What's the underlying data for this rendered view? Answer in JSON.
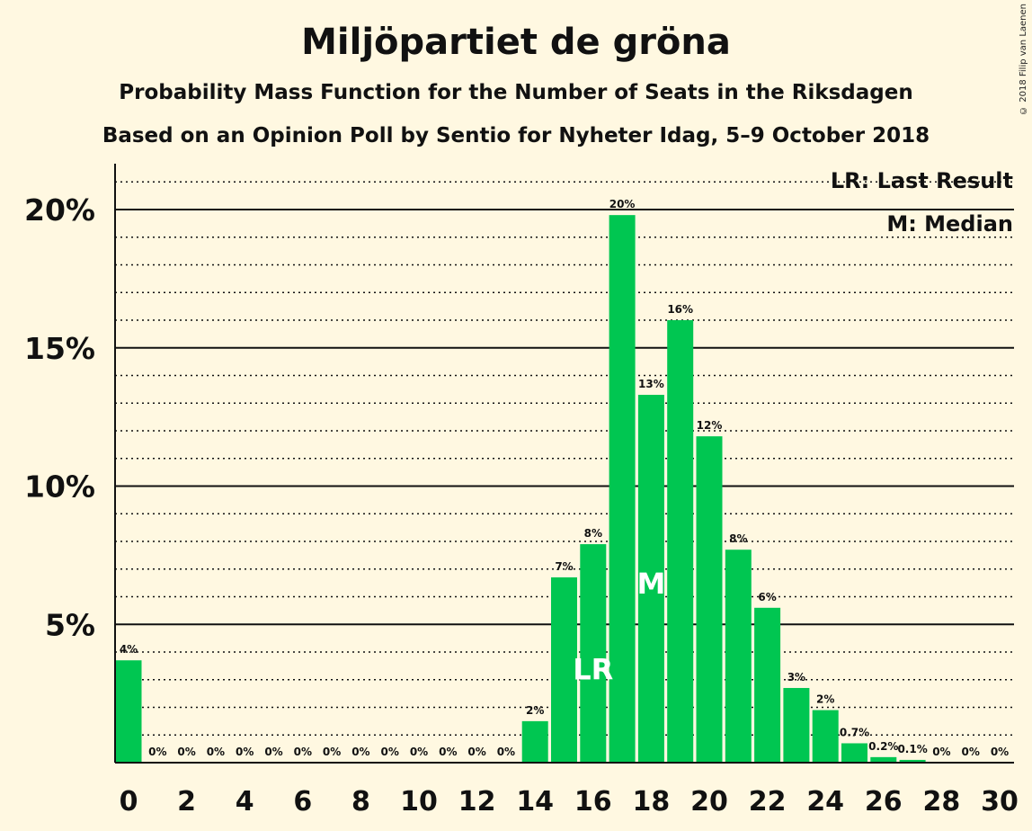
{
  "chart_data": {
    "type": "bar",
    "title": "Miljöpartiet de gröna",
    "subtitle": "Probability Mass Function for the Number of Seats in the Riksdagen",
    "subtitle2": "Based on an Opinion Poll by Sentio for Nyheter Idag, 5–9 October 2018",
    "copyright": "© 2018 Filip van Laenen",
    "legend": [
      "LR: Last Result",
      "M: Median"
    ],
    "legend_position": "top-right",
    "x": [
      0,
      1,
      2,
      3,
      4,
      5,
      6,
      7,
      8,
      9,
      10,
      11,
      12,
      13,
      14,
      15,
      16,
      17,
      18,
      19,
      20,
      21,
      22,
      23,
      24,
      25,
      26,
      27,
      28,
      29,
      30
    ],
    "values": [
      3.7,
      0,
      0,
      0,
      0,
      0,
      0,
      0,
      0,
      0,
      0,
      0,
      0,
      0,
      1.5,
      6.7,
      7.9,
      19.8,
      13.3,
      16.0,
      11.8,
      7.7,
      5.6,
      2.7,
      1.9,
      0.7,
      0.2,
      0.1,
      0,
      0,
      0
    ],
    "data_labels": [
      "4%",
      "0%",
      "0%",
      "0%",
      "0%",
      "0%",
      "0%",
      "0%",
      "0%",
      "0%",
      "0%",
      "0%",
      "0%",
      "0%",
      "2%",
      "7%",
      "8%",
      "20%",
      "13%",
      "16%",
      "12%",
      "8%",
      "6%",
      "3%",
      "2%",
      "0.7%",
      "0.2%",
      "0.1%",
      "0%",
      "0%",
      "0%"
    ],
    "x_ticks": [
      "0",
      "2",
      "4",
      "6",
      "8",
      "10",
      "12",
      "14",
      "16",
      "18",
      "20",
      "22",
      "24",
      "26",
      "28",
      "30"
    ],
    "y_ticks": [
      "5%",
      "10%",
      "15%",
      "20%"
    ],
    "ylim": [
      0,
      21.6
    ],
    "grid": true,
    "last_result_seat": 16,
    "median_seat": 18,
    "markers": {
      "last_result": "LR",
      "median": "M"
    },
    "colors": {
      "bar": "#00c651",
      "background": "#fff8e1",
      "text": "#111111"
    }
  }
}
